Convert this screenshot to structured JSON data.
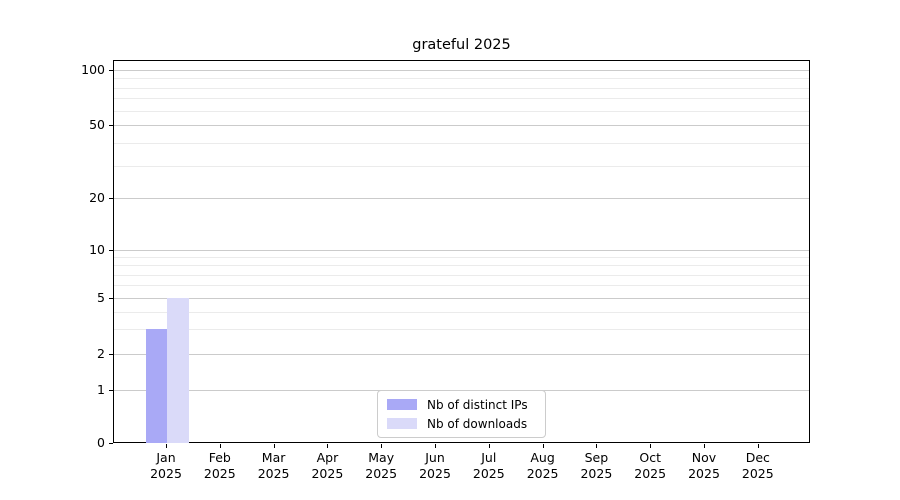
{
  "chart_data": {
    "type": "bar",
    "title": "grateful 2025",
    "categories": [
      "Jan",
      "Feb",
      "Mar",
      "Apr",
      "May",
      "Jun",
      "Jul",
      "Aug",
      "Sep",
      "Oct",
      "Nov",
      "Dec"
    ],
    "year": "2025",
    "series": [
      {
        "name": "Nb of distinct IPs",
        "color": "#a9a9f6",
        "values": [
          3,
          0,
          0,
          0,
          0,
          0,
          0,
          0,
          0,
          0,
          0,
          0
        ]
      },
      {
        "name": "Nb of downloads",
        "color": "#dadaf9",
        "values": [
          5,
          0,
          0,
          0,
          0,
          0,
          0,
          0,
          0,
          0,
          0,
          0
        ]
      }
    ],
    "yticks": [
      0,
      1,
      2,
      5,
      10,
      20,
      50,
      100
    ],
    "ylim": [
      0,
      115
    ],
    "yscale": "log-like",
    "xlabel": "",
    "ylabel": "",
    "grid": true,
    "legend_position": "lower center"
  }
}
